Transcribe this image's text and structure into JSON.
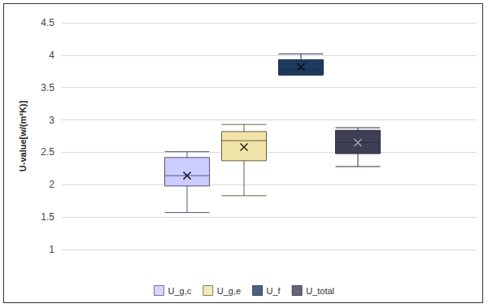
{
  "chart_data": {
    "type": "boxplot",
    "ylabel": "U-value[w/(m²K)]",
    "ylim": [
      1,
      4.5
    ],
    "yticks": [
      1,
      1.5,
      2,
      2.5,
      3,
      3.5,
      4,
      4.5
    ],
    "grid": true,
    "legend": "bottom",
    "marker": "x",
    "tick_labels": "y",
    "series": [
      {
        "name": "U_g,c",
        "color": "#ccccff",
        "min": 1.57,
        "q1": 1.98,
        "median": 2.14,
        "q3": 2.42,
        "max": 2.51,
        "mean": 2.14
      },
      {
        "name": "U_g,e",
        "color": "#f0e4a8",
        "min": 1.83,
        "q1": 2.37,
        "median": 2.68,
        "q3": 2.82,
        "max": 2.93,
        "mean": 2.58
      },
      {
        "name": "U_f",
        "color": "#1f3a5f",
        "min": 3.69,
        "q1": 3.7,
        "median": 3.78,
        "q3": 3.93,
        "max": 4.02,
        "mean": 3.82
      },
      {
        "name": "U_total",
        "color": "#3e3e55",
        "min": 2.28,
        "q1": 2.48,
        "median": 2.65,
        "q3": 2.84,
        "max": 2.88,
        "mean": 2.65
      }
    ]
  }
}
